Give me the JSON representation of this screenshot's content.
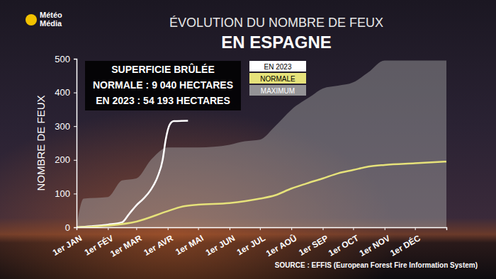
{
  "chart_data": {
    "type": "line",
    "logo": "Météo Média",
    "title": "ÉVOLUTION DU NOMBRE DE FEUX",
    "subtitle": "EN ESPAGNE",
    "y_label": "NOMBRE DE FEUX",
    "annotations": [
      "SUPERFICIE BRÛLÉE",
      "NORMALE : 9 040 HECTARES",
      "EN 2023 : 54 193 HECTARES"
    ],
    "source": "SOURCE : EFFIS (European Forest Fire Information System)",
    "xlim": [
      0,
      365
    ],
    "xticks": [
      {
        "value": 0,
        "label": "1er JAN"
      },
      {
        "value": 31,
        "label": "1er FÉV"
      },
      {
        "value": 59,
        "label": "1er MAR"
      },
      {
        "value": 90,
        "label": "1er AVR"
      },
      {
        "value": 120,
        "label": "1er MAI"
      },
      {
        "value": 151,
        "label": "1er JUN"
      },
      {
        "value": 181,
        "label": "1er JUL"
      },
      {
        "value": 212,
        "label": "1er AOÛ"
      },
      {
        "value": 243,
        "label": "1er SEP"
      },
      {
        "value": 273,
        "label": "1er OCT"
      },
      {
        "value": 304,
        "label": "1er NOV"
      },
      {
        "value": 334,
        "label": "1er DÉC"
      }
    ],
    "ylim": [
      0,
      500
    ],
    "yticks": [
      0,
      100,
      200,
      300,
      400,
      500
    ],
    "grid": false,
    "legend": "upper center",
    "series": [
      {
        "name": "EN 2023",
        "type": "line",
        "color": "#ffffff",
        "x": [
          0,
          14,
          31,
          45,
          52,
          59,
          66,
          73,
          80,
          85,
          88,
          92,
          96,
          110
        ],
        "values": [
          0,
          3,
          8,
          15,
          40,
          65,
          85,
          110,
          150,
          200,
          260,
          305,
          315,
          316
        ]
      },
      {
        "name": "NORMALE",
        "type": "line",
        "color": "#e6e27a",
        "x": [
          0,
          31,
          59,
          90,
          105,
          120,
          151,
          181,
          196,
          212,
          227,
          243,
          258,
          273,
          288,
          304,
          334,
          365
        ],
        "values": [
          0,
          5,
          17,
          48,
          62,
          67,
          72,
          85,
          95,
          115,
          130,
          145,
          160,
          170,
          180,
          185,
          190,
          195
        ]
      },
      {
        "name": "MAXIMUM",
        "type": "area",
        "color": "#a8a8a8",
        "x": [
          0,
          7,
          31,
          45,
          59,
          74,
          90,
          120,
          151,
          166,
          181,
          196,
          212,
          232,
          243,
          258,
          273,
          288,
          304,
          365
        ],
        "values": [
          0,
          85,
          90,
          139,
          145,
          202,
          237,
          237,
          245,
          255,
          260,
          300,
          349,
          390,
          412,
          420,
          430,
          460,
          495,
          495
        ]
      }
    ]
  }
}
